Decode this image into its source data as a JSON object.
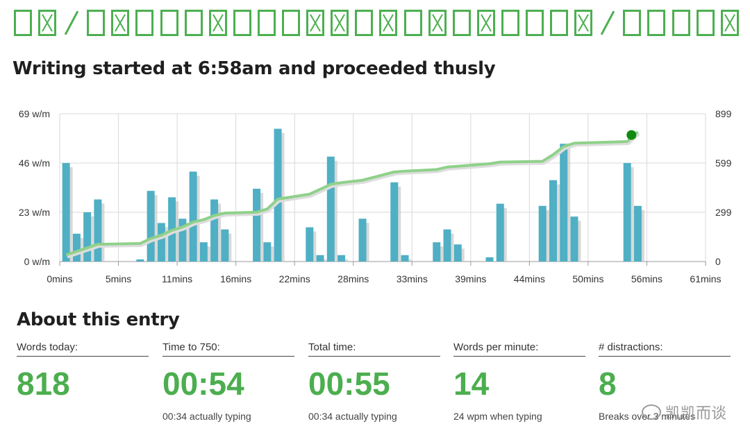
{
  "banner": {
    "glyphs": [
      "box",
      "x",
      "slash",
      "box",
      "x",
      "box",
      "box",
      "box",
      "x",
      "box",
      "box",
      "box",
      "x",
      "x",
      "box",
      "x",
      "box",
      "x",
      "box",
      "x",
      "box",
      "box",
      "box",
      "x",
      "slash",
      "box",
      "box",
      "box",
      "box",
      "x"
    ],
    "color": "#4caf50"
  },
  "chart_title": "Writing started at 6:58am and proceeded thusly",
  "chart_data": {
    "type": "bar",
    "x_tick_labels": [
      "0mins",
      "5mins",
      "11mins",
      "16mins",
      "22mins",
      "28mins",
      "33mins",
      "39mins",
      "44mins",
      "50mins",
      "56mins",
      "61mins"
    ],
    "y_left_tick_labels": [
      "0 w/m",
      "23 w/m",
      "46 w/m",
      "69 w/m"
    ],
    "y_right_tick_labels": [
      "0",
      "299",
      "599",
      "899"
    ],
    "y_left_range": [
      0,
      69
    ],
    "y_right_range": [
      0,
      899
    ],
    "x_range": [
      0,
      61
    ],
    "grid": true,
    "series": [
      {
        "type": "bar",
        "axis": "left",
        "color": "#4fafc4",
        "x": [
          0.6,
          1.6,
          2.6,
          3.6,
          7.6,
          8.6,
          9.6,
          10.6,
          11.6,
          12.6,
          13.6,
          14.6,
          15.6,
          18.6,
          19.6,
          20.6,
          23.6,
          24.6,
          25.6,
          26.6,
          28.6,
          31.6,
          32.6,
          35.6,
          36.6,
          37.6,
          40.6,
          41.6,
          45.6,
          46.6,
          47.6,
          48.6,
          53.6,
          54.6
        ],
        "values": [
          46,
          13,
          23,
          29,
          1,
          33,
          18,
          30,
          20,
          42,
          9,
          29,
          15,
          34,
          9,
          62,
          16,
          3,
          49,
          3,
          20,
          37,
          3,
          9,
          15,
          8,
          2,
          27,
          26,
          38,
          55,
          21,
          46,
          26
        ]
      },
      {
        "type": "line",
        "axis": "right",
        "color": "#8fd18a",
        "x": [
          0.6,
          3.6,
          7.6,
          8.6,
          9.6,
          10.6,
          11.6,
          12.6,
          13.6,
          14.6,
          15.6,
          18.6,
          19.6,
          20.6,
          23.6,
          24.6,
          25.6,
          26.6,
          28.6,
          31.6,
          32.6,
          35.6,
          36.6,
          37.6,
          40.6,
          41.6,
          45.6,
          46.6,
          47.6,
          48.6,
          53.6,
          54.6
        ],
        "values": [
          40,
          105,
          110,
          140,
          160,
          190,
          210,
          240,
          255,
          280,
          295,
          300,
          320,
          380,
          410,
          440,
          470,
          480,
          495,
          545,
          550,
          560,
          575,
          580,
          595,
          605,
          610,
          650,
          700,
          720,
          730,
          790
        ]
      }
    ],
    "end_marker": {
      "x": 54,
      "value": 770,
      "color": "#108a10"
    }
  },
  "about": {
    "title": "About this entry",
    "stats": [
      {
        "label": "Words today:",
        "value": "818",
        "note": ""
      },
      {
        "label": "Time to 750:",
        "value": "00:54",
        "note": "00:34 actually typing"
      },
      {
        "label": "Total time:",
        "value": "00:55",
        "note": "00:34 actually typing"
      },
      {
        "label": "Words per minute:",
        "value": "14",
        "note": "24 wpm when typing"
      },
      {
        "label": "# distractions:",
        "value": "8",
        "note": "Breaks over 3 minutes"
      }
    ]
  },
  "watermark": {
    "text": "凯凯而谈"
  }
}
